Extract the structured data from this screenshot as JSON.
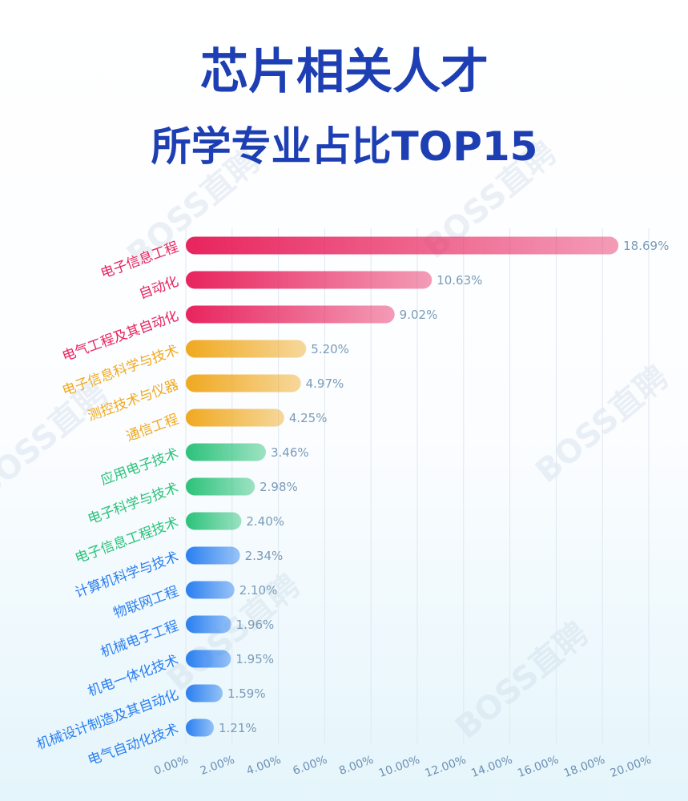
{
  "chart_data": {
    "type": "bar",
    "orientation": "horizontal",
    "title": "芯片相关人才",
    "subtitle": "所学专业占比TOP15",
    "watermark": "BOSS直聘",
    "categories": [
      "电子信息工程",
      "自动化",
      "电气工程及其自动化",
      "电子信息科学与技术",
      "测控技术与仪器",
      "通信工程",
      "应用电子技术",
      "电子科学与技术",
      "电子信息工程技术",
      "计算机科学与技术",
      "物联网工程",
      "机械电子工程",
      "机电一体化技术",
      "机械设计制造及其自动化",
      "电气自动化技术"
    ],
    "values": [
      18.69,
      10.63,
      9.02,
      5.2,
      4.97,
      4.25,
      3.46,
      2.98,
      2.4,
      2.34,
      2.1,
      1.96,
      1.95,
      1.59,
      1.21
    ],
    "value_labels": [
      "18.69%",
      "10.63%",
      "9.02%",
      "5.20%",
      "4.97%",
      "4.25%",
      "3.46%",
      "2.98%",
      "2.40%",
      "2.34%",
      "2.10%",
      "1.96%",
      "1.95%",
      "1.59%",
      "1.21%"
    ],
    "colors": [
      "#e8245e",
      "#e8245e",
      "#e8245e",
      "#f0a920",
      "#f0a920",
      "#f0a920",
      "#2cc27a",
      "#2cc27a",
      "#2cc27a",
      "#2a7ff0",
      "#2a7ff0",
      "#2a7ff0",
      "#2a7ff0",
      "#2a7ff0",
      "#2a7ff0"
    ],
    "xlim": [
      0,
      20
    ],
    "xticks": [
      {
        "value": 0,
        "label": "0.00%"
      },
      {
        "value": 2,
        "label": "2.00%"
      },
      {
        "value": 4,
        "label": "4.00%"
      },
      {
        "value": 6,
        "label": "6.00%"
      },
      {
        "value": 8,
        "label": "8.00%"
      },
      {
        "value": 10,
        "label": "10.00%"
      },
      {
        "value": 12,
        "label": "12.00%"
      },
      {
        "value": 14,
        "label": "14.00%"
      },
      {
        "value": 16,
        "label": "16.00%"
      },
      {
        "value": 18,
        "label": "18.00%"
      },
      {
        "value": 20,
        "label": "20.00%"
      }
    ],
    "grid": true
  }
}
